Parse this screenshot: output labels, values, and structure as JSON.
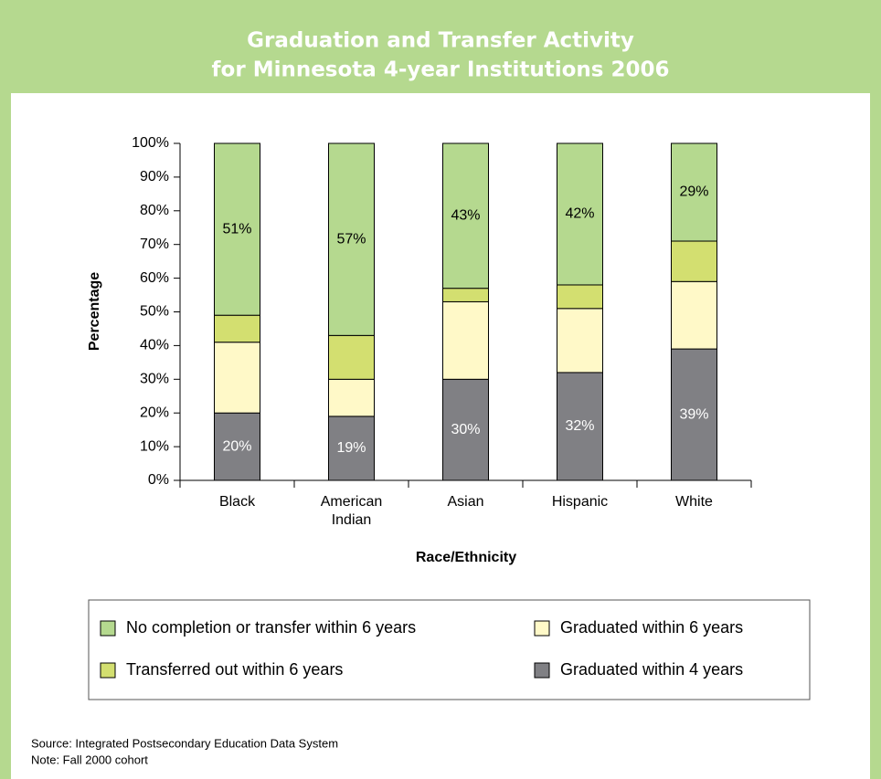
{
  "chart_data": {
    "type": "stacked_bar",
    "title": [
      "Graduation and Transfer Activity",
      "for Minnesota 4-year Institutions 2006"
    ],
    "ylabel": "Percentage",
    "xlabel": "Race/Ethnicity",
    "categories": [
      "Black",
      "American Indian",
      "Asian",
      "Hispanic",
      "White"
    ],
    "series": [
      {
        "name": "Graduated within 4 years",
        "color": "#808084",
        "values": [
          20,
          19,
          30,
          32,
          39
        ],
        "value_labels": [
          "20%",
          "19%",
          "30%",
          "32%",
          "39%"
        ]
      },
      {
        "name": "Graduated within 6 years",
        "color": "#fff9c8",
        "values": [
          21,
          11,
          23,
          19,
          20
        ]
      },
      {
        "name": "Transferred out within 6 years",
        "color": "#d3df70",
        "values": [
          8,
          13,
          4,
          7,
          12
        ]
      },
      {
        "name": "No completion or transfer within 6 years",
        "color": "#b5d98f",
        "values": [
          51,
          57,
          43,
          42,
          29
        ],
        "value_labels": [
          "51%",
          "57%",
          "43%",
          "42%",
          "29%"
        ]
      }
    ],
    "ylim": [
      0,
      100
    ],
    "yticks": [
      {
        "value": 0,
        "label": "0%"
      },
      {
        "value": 10,
        "label": "10%"
      },
      {
        "value": 20,
        "label": "20%"
      },
      {
        "value": 30,
        "label": "30%"
      },
      {
        "value": 40,
        "label": "40%"
      },
      {
        "value": 50,
        "label": "50%"
      },
      {
        "value": 60,
        "label": "60%"
      },
      {
        "value": 70,
        "label": "70%"
      },
      {
        "value": 80,
        "label": "80%"
      },
      {
        "value": 90,
        "label": "90%"
      },
      {
        "value": 100,
        "label": "100%"
      }
    ],
    "grid": false,
    "source": "Source: Integrated Postsecondary Education Data System",
    "note": "Note: Fall 2000 cohort"
  }
}
